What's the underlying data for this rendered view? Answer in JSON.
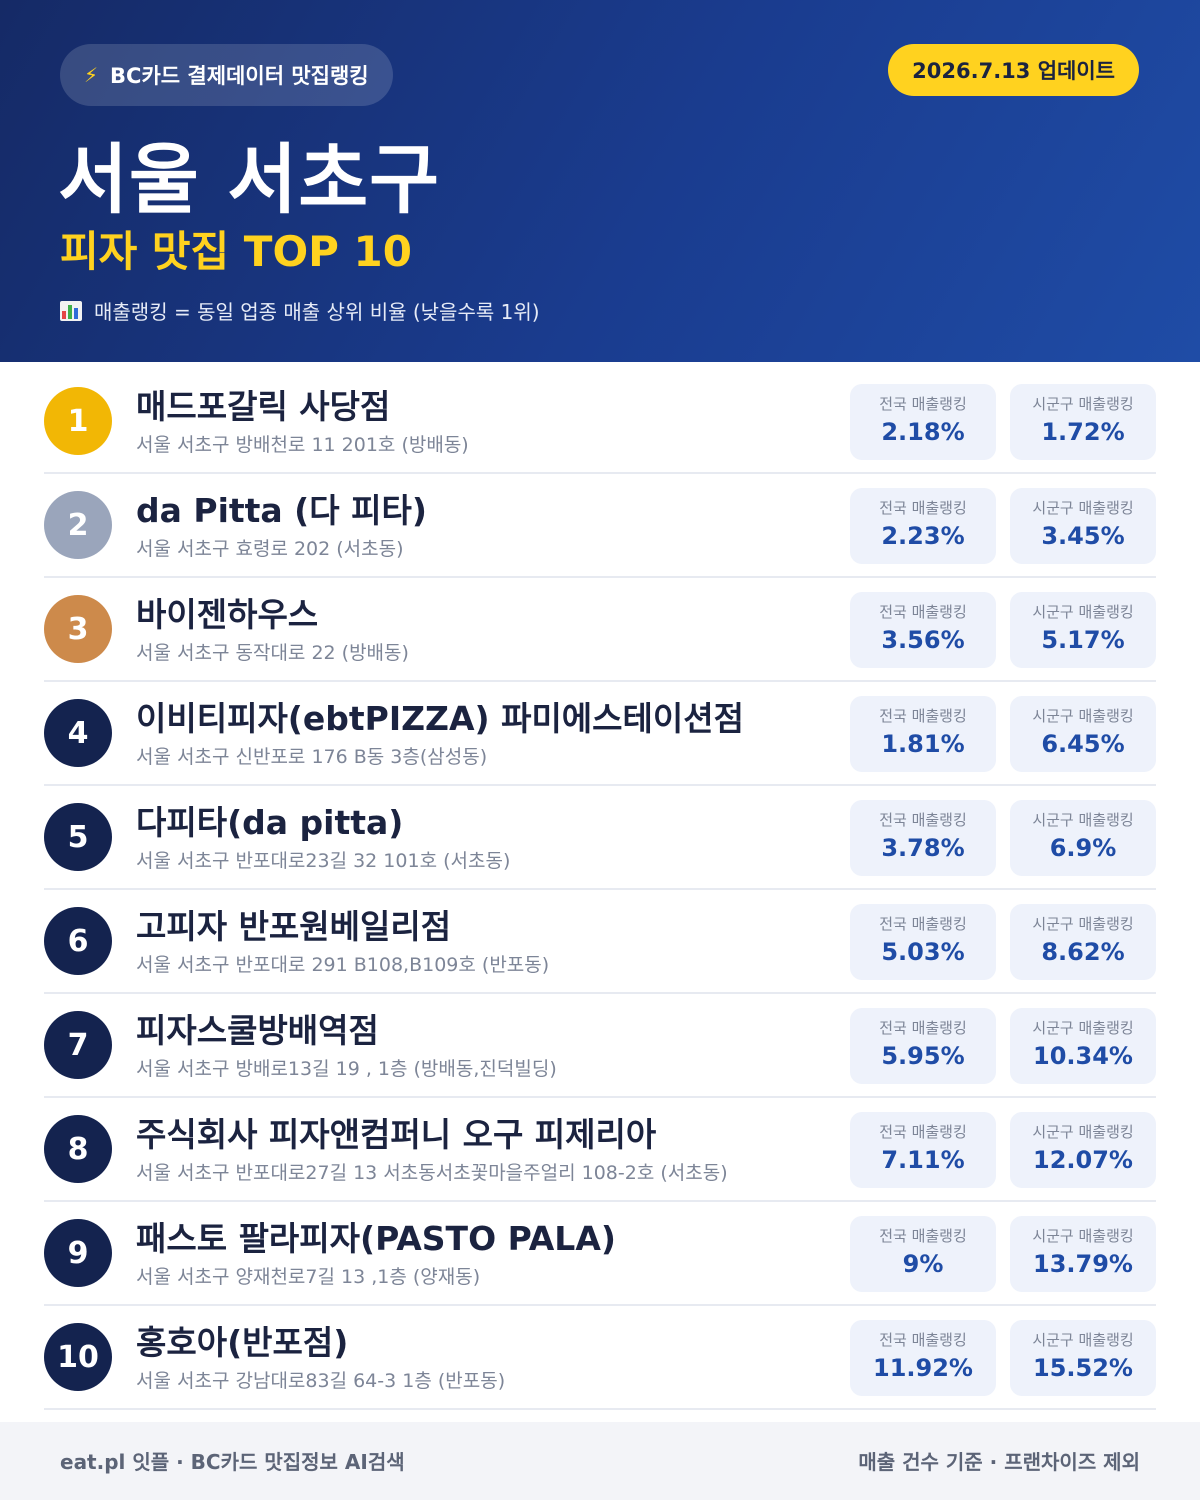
{
  "header": {
    "badge_icon": "lightning-bolt-icon",
    "badge_text": "BC카드 결제데이터 맛집랭킹",
    "update_text": "2026.7.13 업데이트",
    "title": "서울 서초구",
    "subtitle": "피자 맛집 TOP 10",
    "legend_icon": "bar-chart-icon",
    "legend_text": "매출랭킹 = 동일 업종 매출 상위 비율 (낮을수록 1위)"
  },
  "colors": {
    "accent_yellow": "#ffd21f",
    "header_blue": "#1a3c8f",
    "gold": "#f2b705",
    "silver": "#9aa5bb",
    "bronze": "#cd8a4b",
    "navy": "#14234f",
    "value_blue": "#1f4ca6"
  },
  "stat_labels": {
    "national": "전국 매출랭킹",
    "district": "시군구 매출랭킹"
  },
  "restaurants": [
    {
      "rank": "1",
      "name": "매드포갈릭 사당점",
      "address": "서울 서초구 방배천로 11 201호 (방배동)",
      "national": "2.18%",
      "district": "1.72%"
    },
    {
      "rank": "2",
      "name": "da Pitta (다 피타)",
      "address": "서울 서초구 효령로 202 (서초동)",
      "national": "2.23%",
      "district": "3.45%"
    },
    {
      "rank": "3",
      "name": "바이젠하우스",
      "address": "서울 서초구 동작대로 22 (방배동)",
      "national": "3.56%",
      "district": "5.17%"
    },
    {
      "rank": "4",
      "name": "이비티피자(ebtPIZZA) 파미에스테이션점",
      "address": "서울 서초구 신반포로 176 B동 3층(삼성동)",
      "national": "1.81%",
      "district": "6.45%"
    },
    {
      "rank": "5",
      "name": "다피타(da pitta)",
      "address": "서울 서초구 반포대로23길 32 101호 (서초동)",
      "national": "3.78%",
      "district": "6.9%"
    },
    {
      "rank": "6",
      "name": "고피자 반포원베일리점",
      "address": "서울 서초구 반포대로 291 B108,B109호 (반포동)",
      "national": "5.03%",
      "district": "8.62%"
    },
    {
      "rank": "7",
      "name": "피자스쿨방배역점",
      "address": "서울 서초구 방배로13길 19 , 1층 (방배동,진덕빌딩)",
      "national": "5.95%",
      "district": "10.34%"
    },
    {
      "rank": "8",
      "name": "주식회사 피자앤컴퍼니 오구 피제리아",
      "address": "서울 서초구 반포대로27길 13 서초동서초꽃마을주얼리 108-2호 (서초동)",
      "national": "7.11%",
      "district": "12.07%"
    },
    {
      "rank": "9",
      "name": "패스토 팔라피자(PASTO PALA)",
      "address": "서울 서초구 양재천로7길 13 ,1층 (양재동)",
      "national": "9%",
      "district": "13.79%"
    },
    {
      "rank": "10",
      "name": "홍호아(반포점)",
      "address": "서울 서초구 강남대로83길 64-3 1층 (반포동)",
      "national": "11.92%",
      "district": "15.52%"
    }
  ],
  "footer": {
    "left": "eat.pl 잇플 · BC카드 맛집정보 AI검색",
    "right": "매출 건수 기준 · 프랜차이즈 제외"
  }
}
